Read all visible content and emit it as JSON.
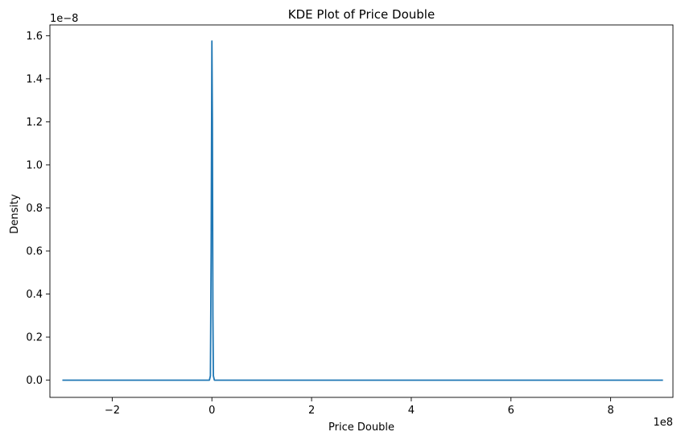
{
  "chart_data": {
    "type": "line",
    "title": "KDE Plot of Price Double",
    "xlabel": "Price Double",
    "ylabel": "Density",
    "x_offset_label": "1e8",
    "y_offset_label": "1e−8",
    "x_scale": 100000000,
    "y_scale": 1e-08,
    "xlim": [
      -3.25,
      9.25
    ],
    "ylim": [
      -0.08,
      1.65
    ],
    "x_ticks": [
      -2,
      0,
      2,
      4,
      6,
      8
    ],
    "x_tick_labels": [
      "−2",
      "0",
      "2",
      "4",
      "6",
      "8"
    ],
    "y_ticks": [
      0.0,
      0.2,
      0.4,
      0.6,
      0.8,
      1.0,
      1.2,
      1.4,
      1.6
    ],
    "y_tick_labels": [
      "0.0",
      "0.2",
      "0.4",
      "0.6",
      "0.8",
      "1.0",
      "1.2",
      "1.4",
      "1.6"
    ],
    "grid": false,
    "series": [
      {
        "color": "#1f77b4",
        "x": [
          -3.0,
          -0.05,
          -0.03,
          -0.015,
          0.0,
          0.01,
          0.02,
          0.03,
          0.05,
          0.1,
          9.05
        ],
        "y": [
          0.0,
          0.0,
          0.02,
          0.6,
          1.575,
          1.2,
          0.3,
          0.02,
          0.0,
          0.0,
          0.0
        ]
      }
    ]
  }
}
